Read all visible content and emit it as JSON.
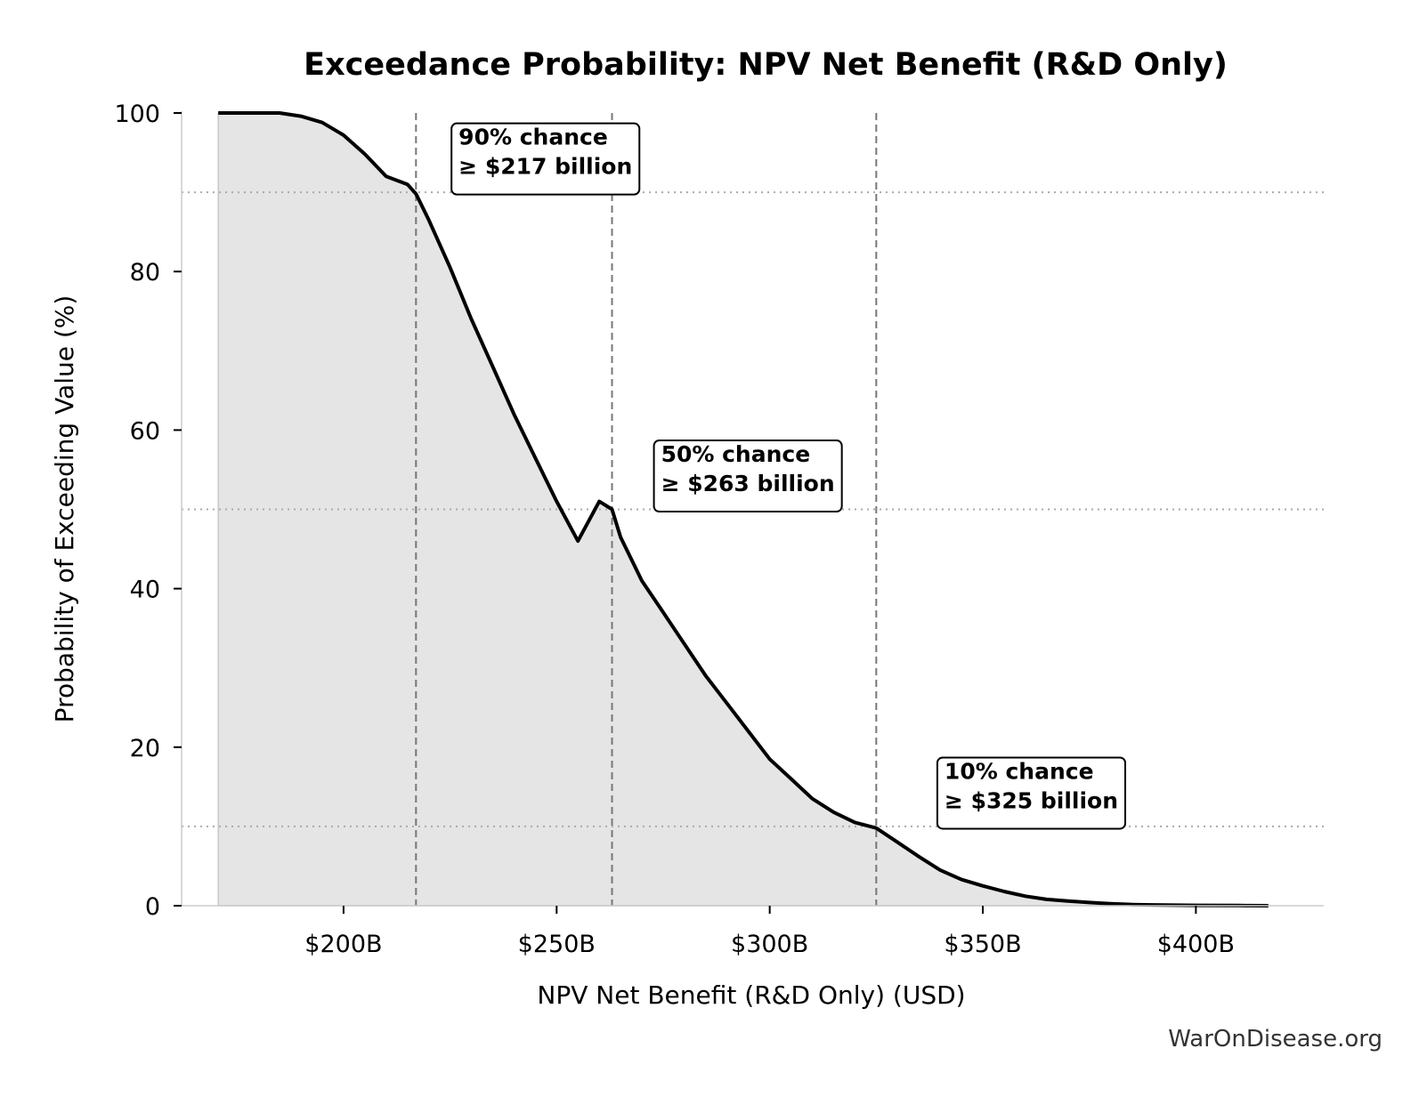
{
  "chart_data": {
    "type": "area",
    "title": "Exceedance Probability: NPV Net Benefit (R&D Only)",
    "xlabel": "NPV Net Benefit (R&D Only) (USD)",
    "ylabel": "Probability of Exceeding Value (%)",
    "xlim": [
      162,
      430
    ],
    "ylim": [
      0,
      100
    ],
    "x_ticks": [
      {
        "value": 200,
        "label": "$200B"
      },
      {
        "value": 250,
        "label": "$250B"
      },
      {
        "value": 300,
        "label": "$300B"
      },
      {
        "value": 350,
        "label": "$350B"
      },
      {
        "value": 400,
        "label": "$400B"
      }
    ],
    "y_ticks": [
      {
        "value": 0,
        "label": "0"
      },
      {
        "value": 20,
        "label": "20"
      },
      {
        "value": 40,
        "label": "40"
      },
      {
        "value": 60,
        "label": "60"
      },
      {
        "value": 80,
        "label": "80"
      },
      {
        "value": 100,
        "label": "100"
      }
    ],
    "grid": false,
    "series": [
      {
        "x": [
          170.6,
          180,
          185,
          190,
          195,
          200,
          205,
          210,
          215,
          217,
          220,
          225,
          230,
          235,
          240,
          245,
          250,
          255,
          260,
          263,
          265,
          270,
          275,
          280,
          285,
          290,
          295,
          300,
          305,
          310,
          315,
          320,
          325,
          330,
          335,
          340,
          345,
          350,
          355,
          360,
          365,
          370,
          375,
          380,
          385,
          390,
          400,
          410,
          417
        ],
        "y": [
          100,
          100,
          100,
          99.6,
          98.8,
          97.2,
          94.8,
          92.0,
          91.0,
          89.8,
          86.5,
          80.5,
          74.0,
          68.0,
          62.0,
          56.5,
          51.0,
          46.0,
          51.0,
          50.0,
          46.5,
          41.0,
          37.0,
          33.0,
          29.0,
          25.5,
          22.0,
          18.5,
          16.0,
          13.5,
          11.8,
          10.5,
          9.8,
          8.0,
          6.2,
          4.5,
          3.3,
          2.5,
          1.8,
          1.2,
          0.8,
          0.6,
          0.4,
          0.25,
          0.15,
          0.1,
          0.05,
          0.02,
          0.0
        ],
        "color": "#000000",
        "fill": "#e5e5e5"
      }
    ],
    "reference_lines": [
      {
        "orientation": "vertical",
        "x": 217,
        "style": "dashed"
      },
      {
        "orientation": "vertical",
        "x": 263,
        "style": "dashed"
      },
      {
        "orientation": "vertical",
        "x": 325,
        "style": "dashed"
      },
      {
        "orientation": "horizontal",
        "y": 90,
        "style": "dotted"
      },
      {
        "orientation": "horizontal",
        "y": 50,
        "style": "dotted"
      },
      {
        "orientation": "horizontal",
        "y": 10,
        "style": "dotted"
      }
    ],
    "annotations": [
      {
        "line1": "90% chance",
        "line2": "≥ $217 billion",
        "x": 227,
        "y": 96
      },
      {
        "line1": "50% chance",
        "line2": "≥ $263 billion",
        "x": 274.5,
        "y": 56
      },
      {
        "line1": "10% chance",
        "line2": "≥ $325 billion",
        "x": 341,
        "y": 16
      }
    ],
    "credit": "WarOnDisease.org"
  }
}
